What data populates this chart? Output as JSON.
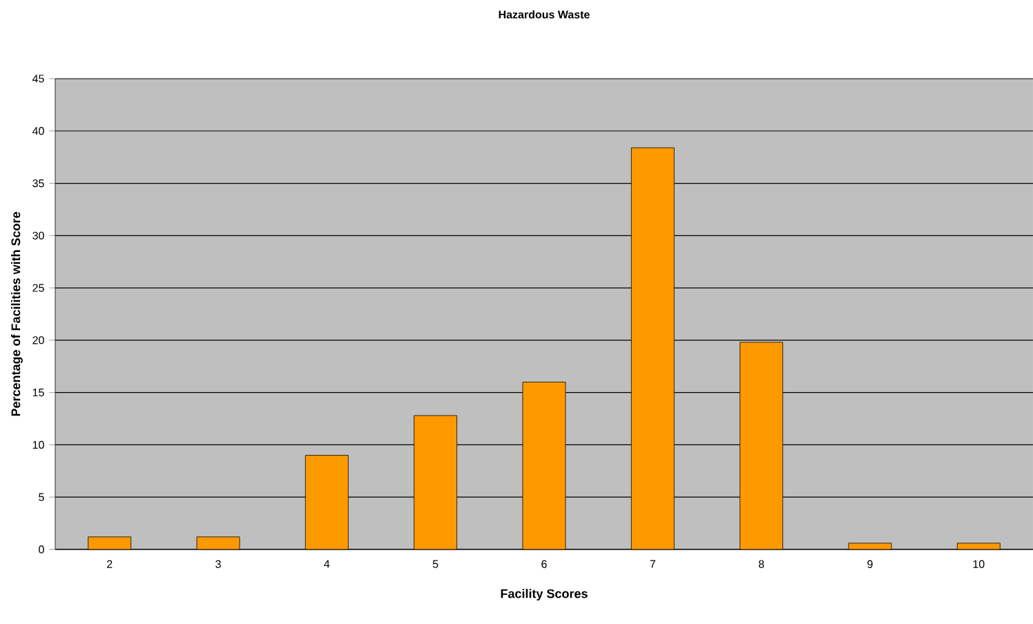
{
  "chart_data": {
    "type": "bar",
    "title": "Hazardous Waste",
    "xlabel": "Facility Scores",
    "ylabel": "Percentage of Facilities with Score",
    "categories": [
      "2",
      "3",
      "4",
      "5",
      "6",
      "7",
      "8",
      "9",
      "10"
    ],
    "values": [
      1.2,
      1.2,
      9.0,
      12.8,
      16.0,
      38.4,
      19.8,
      0.6,
      0.6
    ],
    "color": "#ff9900",
    "ylim": [
      0,
      45
    ],
    "yticks": [
      0,
      5,
      10,
      15,
      20,
      25,
      30,
      35,
      40,
      45
    ],
    "grid": "y"
  }
}
